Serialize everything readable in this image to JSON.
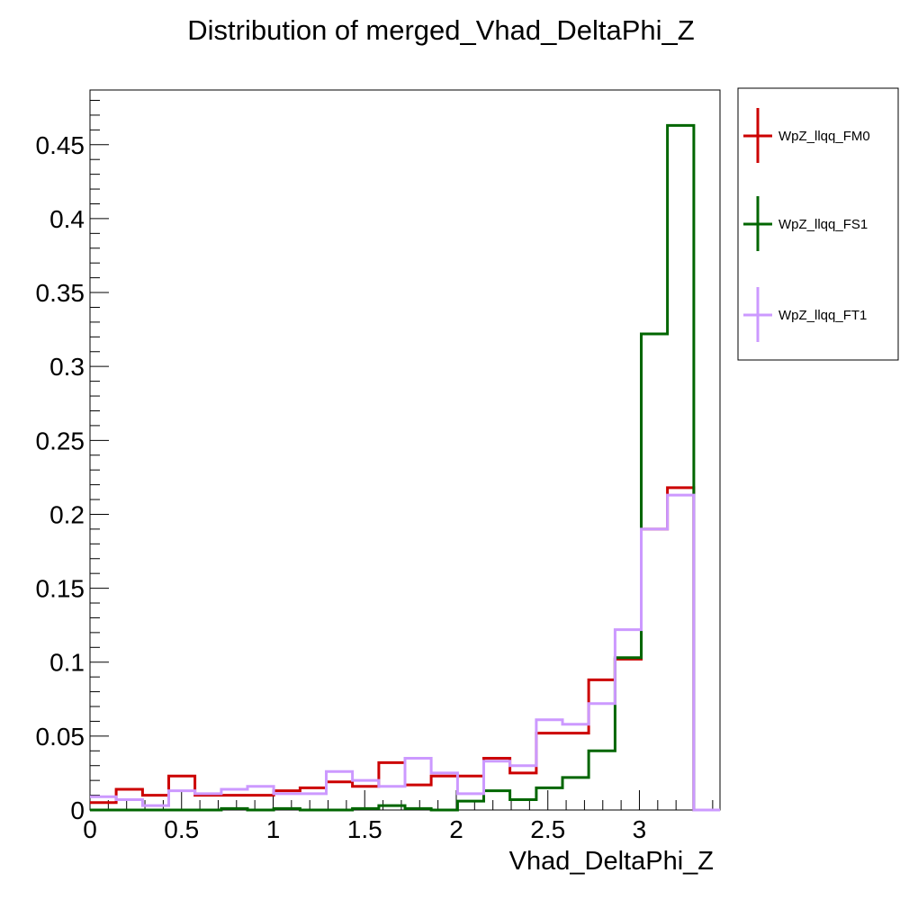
{
  "chart_data": {
    "type": "step-histogram",
    "title": "Distribution of merged_Vhad_DeltaPhi_Z",
    "xlabel": "Vhad_DeltaPhi_Z",
    "ylabel": "",
    "xlim": [
      0,
      3.44
    ],
    "ylim": [
      0,
      0.487
    ],
    "bin_edges": [
      0,
      0.143,
      0.287,
      0.43,
      0.573,
      0.717,
      0.86,
      1.003,
      1.147,
      1.29,
      1.433,
      1.577,
      1.72,
      1.863,
      2.007,
      2.15,
      2.293,
      2.437,
      2.58,
      2.723,
      2.867,
      3.01,
      3.153,
      3.297,
      3.44
    ],
    "x_ticks": [
      0,
      0.5,
      1,
      1.5,
      2,
      2.5,
      3
    ],
    "x_tick_labels": [
      "0",
      "0.5",
      "1",
      "1.5",
      "2",
      "2.5",
      "3"
    ],
    "y_ticks": [
      0,
      0.05,
      0.1,
      0.15,
      0.2,
      0.25,
      0.3,
      0.35,
      0.4,
      0.45
    ],
    "y_tick_labels": [
      "0",
      "0.05",
      "0.1",
      "0.15",
      "0.2",
      "0.25",
      "0.3",
      "0.35",
      "0.4",
      "0.45"
    ],
    "legend_position": "right, outside plot",
    "series": [
      {
        "name": "WpZ_llqq_FM0",
        "color": "#cc0000",
        "values": [
          0.005,
          0.014,
          0.01,
          0.023,
          0.01,
          0.01,
          0.01,
          0.013,
          0.015,
          0.019,
          0.016,
          0.032,
          0.017,
          0.023,
          0.023,
          0.035,
          0.025,
          0.052,
          0.052,
          0.088,
          0.102,
          0.19,
          0.218,
          0
        ]
      },
      {
        "name": "WpZ_llqq_FS1",
        "color": "#006600",
        "values": [
          0,
          0,
          0,
          0,
          0,
          0.001,
          0,
          0.001,
          0,
          0,
          0.001,
          0.003,
          0.001,
          0,
          0.006,
          0.013,
          0.007,
          0.015,
          0.022,
          0.04,
          0.103,
          0.322,
          0.463,
          0
        ]
      },
      {
        "name": "WpZ_llqq_FT1",
        "color": "#cc99ff",
        "values": [
          0.009,
          0.007,
          0.003,
          0.013,
          0.011,
          0.014,
          0.016,
          0.011,
          0.011,
          0.026,
          0.02,
          0.016,
          0.035,
          0.025,
          0.011,
          0.033,
          0.03,
          0.061,
          0.058,
          0.072,
          0.122,
          0.19,
          0.213,
          0
        ]
      }
    ]
  }
}
